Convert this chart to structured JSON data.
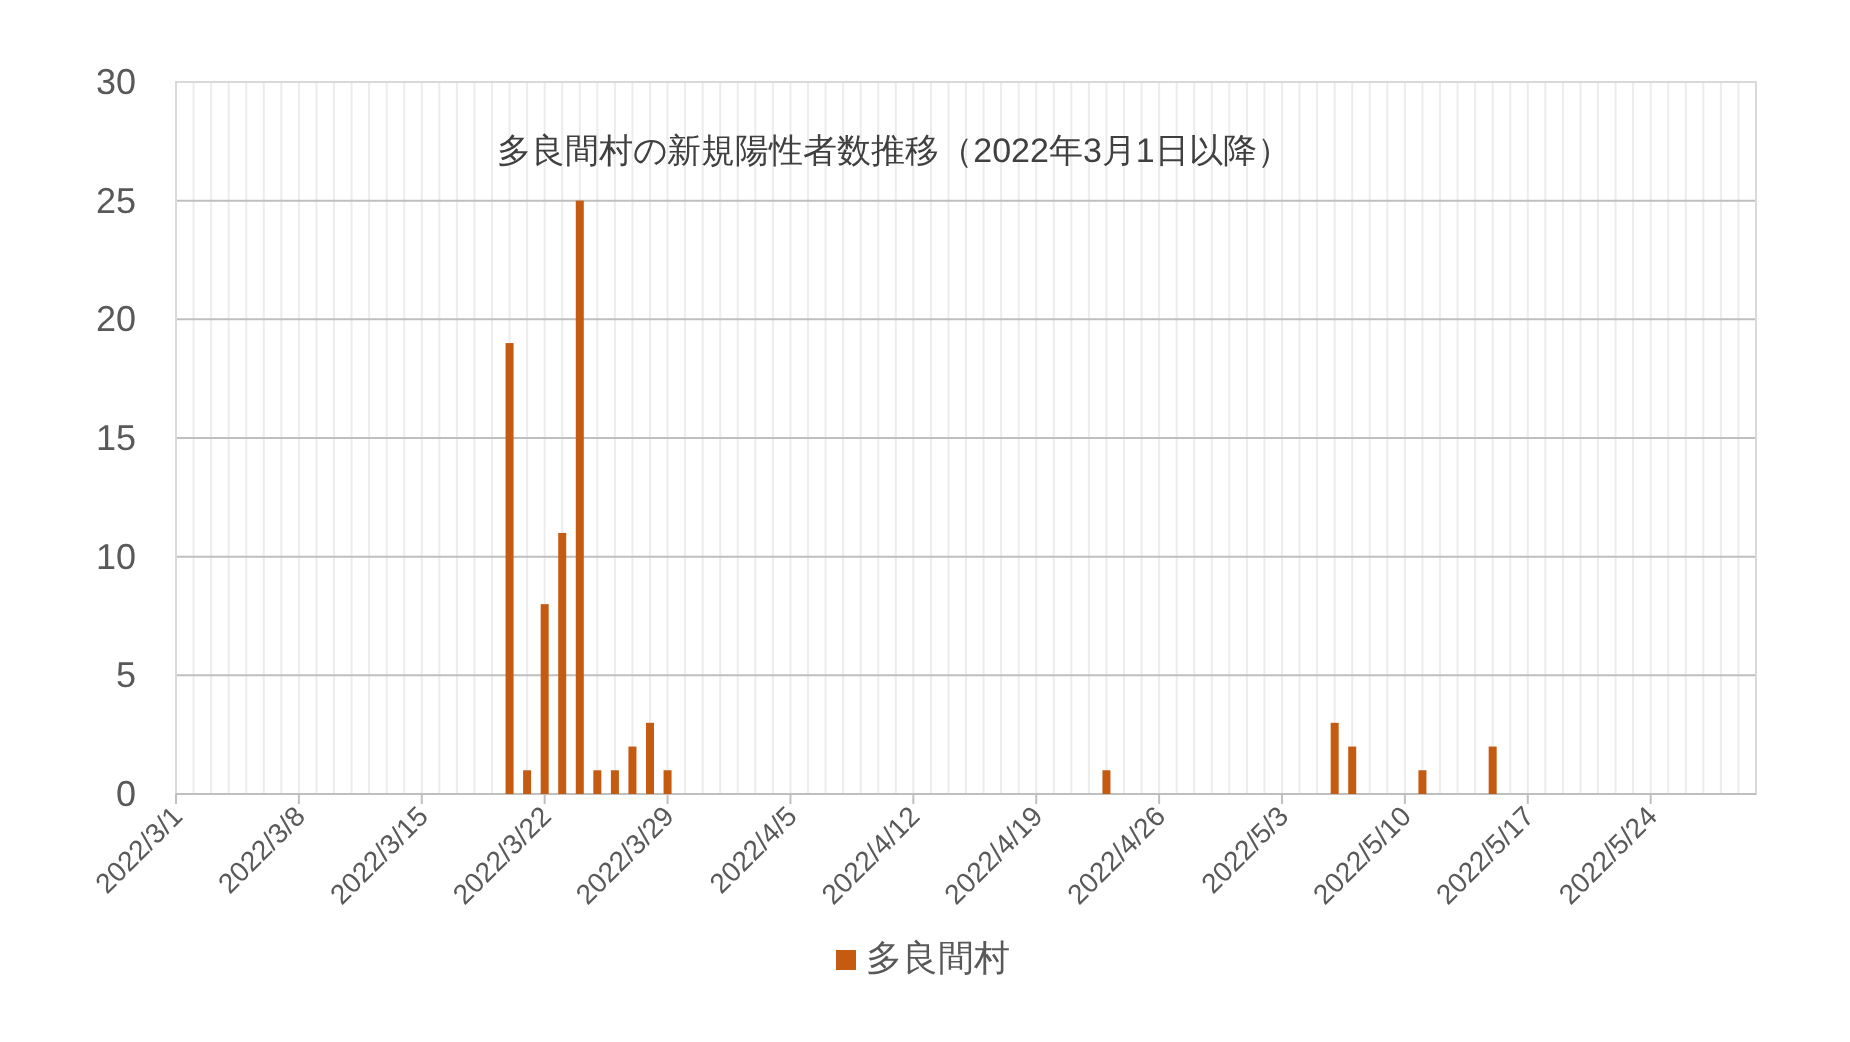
{
  "chart_data": {
    "type": "bar",
    "title": "多良間村の新規陽性者数推移（2022年3月1日以降）",
    "x": [
      "2022-03-20",
      "2022-03-21",
      "2022-03-22",
      "2022-03-23",
      "2022-03-24",
      "2022-03-25",
      "2022-03-26",
      "2022-03-27",
      "2022-03-28",
      "2022-03-29",
      "2022-04-23",
      "2022-05-06",
      "2022-05-07",
      "2022-05-11",
      "2022-05-15"
    ],
    "series": [
      {
        "name": "多良間村",
        "color": "#c55a11",
        "values": [
          19,
          1,
          8,
          11,
          25,
          1,
          1,
          2,
          3,
          1,
          1,
          3,
          2,
          1,
          2
        ]
      }
    ],
    "xlim": [
      "2022-03-01",
      "2022-05-30"
    ],
    "xticks": [
      {
        "value": "2022-03-01",
        "label": "2022/3/1"
      },
      {
        "value": "2022-03-08",
        "label": "2022/3/8"
      },
      {
        "value": "2022-03-15",
        "label": "2022/3/15"
      },
      {
        "value": "2022-03-22",
        "label": "2022/3/22"
      },
      {
        "value": "2022-03-29",
        "label": "2022/3/29"
      },
      {
        "value": "2022-04-05",
        "label": "2022/4/5"
      },
      {
        "value": "2022-04-12",
        "label": "2022/4/12"
      },
      {
        "value": "2022-04-19",
        "label": "2022/4/19"
      },
      {
        "value": "2022-04-26",
        "label": "2022/4/26"
      },
      {
        "value": "2022-05-03",
        "label": "2022/5/3"
      },
      {
        "value": "2022-05-10",
        "label": "2022/5/10"
      },
      {
        "value": "2022-05-17",
        "label": "2022/5/17"
      },
      {
        "value": "2022-05-24",
        "label": "2022/5/24"
      }
    ],
    "ylim": [
      0,
      30
    ],
    "yticks": [
      0,
      5,
      10,
      15,
      20,
      25,
      30
    ],
    "grid": true,
    "legend": "bottom"
  }
}
